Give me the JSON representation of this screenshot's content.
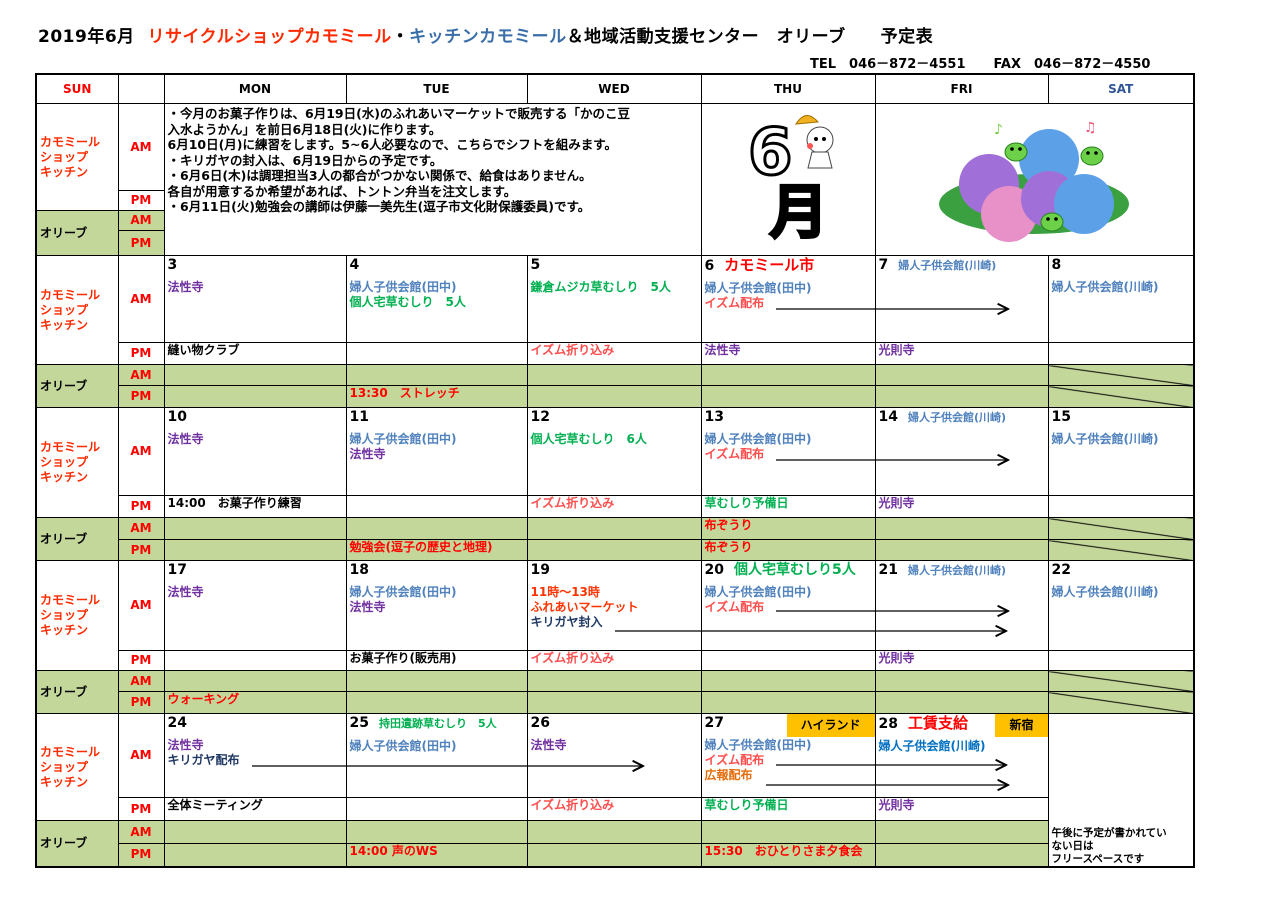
{
  "header": {
    "date": "2019年6月",
    "org1": "リサイクルショップカモミール",
    "sep": "・",
    "org2": "キッチンカモミール",
    "org3": "＆地域活動支援センター　オリーブ　　予定表",
    "tel": "TEL　046－872－4551",
    "fax": "FAX　046－872－4550"
  },
  "colors": {
    "purple": "#7030a0",
    "blue": "#4f81bd",
    "blue2": "#0070c0",
    "green": "#00b050",
    "red": "#ff0000",
    "pink": "#ff4d4d",
    "orange_red": "#ff3300",
    "navy": "#1f3864",
    "orange": "#e46c0a",
    "black": "#000000",
    "olive_green": "#c4d79b",
    "badge": "#ffc000"
  },
  "columns": [
    "SUN",
    "",
    "MON",
    "TUE",
    "WED",
    "THU",
    "FRI",
    "SAT"
  ],
  "groups": {
    "kamomile": [
      "カモミール",
      "ショップ",
      "キッチン"
    ],
    "olive": "オリーブ",
    "am": "AM",
    "pm": "PM"
  },
  "notes": [
    "・今月のお菓子作りは、6月19日(水)のふれあいマーケットで販売する「かのこ豆",
    "入水ようかん」を前日6月18日(火)に作ります。",
    "6月10日(月)に練習をします。5~6人必要なので、こちらでシフトを組みます。",
    "・キリガヤの封入は、6月19日からの予定です。",
    "・6月6日(木)は調理担当3人の都合がつかない関係で、給食はありません。",
    "各自が用意するか希望があれば、トントン弁当を注文します。",
    "・6月11日(火)勉強会の講師は伊藤一美先生(逗子市文化財保護委員)です。"
  ],
  "images": {
    "month_art": "6月",
    "hydrangea": "hydrangea-frogs-illustration"
  },
  "weeks": [
    {
      "days": [
        {
          "date": "3",
          "am": [
            {
              "text": "法性寺",
              "color": "purple"
            }
          ],
          "pm": {
            "text": "縫い物クラブ",
            "color": "black"
          }
        },
        {
          "date": "4",
          "am": [
            {
              "text": "婦人子供会館(田中)",
              "color": "blue"
            },
            {
              "text": "個人宅草むしり　5人",
              "color": "green"
            }
          ],
          "olive_pm": {
            "text": "13:30　ストレッチ",
            "color": "red"
          }
        },
        {
          "date": "5",
          "am": [
            {
              "text": "鎌倉ムジカ草むしり　5人",
              "color": "green"
            }
          ],
          "pm": {
            "text": "イズム折り込み",
            "color": "pink"
          }
        },
        {
          "date": "6",
          "header": {
            "text": "カモミール市",
            "color": "red",
            "size": "big"
          },
          "am": [
            {
              "text": "婦人子供会館(田中)",
              "color": "blue"
            },
            {
              "text": "イズム配布",
              "color": "pink"
            }
          ],
          "pm": {
            "text": "法性寺",
            "color": "purple"
          }
        },
        {
          "date": "7",
          "header": {
            "text": "婦人子供会館(川崎)",
            "color": "blue",
            "size": "small"
          },
          "pm": {
            "text": "光則寺",
            "color": "purple"
          }
        },
        {
          "date": "8",
          "am": [
            {
              "text": "婦人子供会館(川崎)",
              "color": "blue"
            }
          ]
        }
      ]
    },
    {
      "days": [
        {
          "date": "10",
          "am": [
            {
              "text": "法性寺",
              "color": "purple"
            }
          ],
          "pm": {
            "text": "14:00　お菓子作り練習",
            "color": "black"
          }
        },
        {
          "date": "11",
          "am": [
            {
              "text": "婦人子供会館(田中)",
              "color": "blue"
            },
            {
              "text": "法性寺",
              "color": "purple"
            }
          ],
          "olive_pm": {
            "text": "勉強会(逗子の歴史と地理)",
            "color": "red"
          }
        },
        {
          "date": "12",
          "am": [
            {
              "text": "個人宅草むしり　6人",
              "color": "green"
            }
          ],
          "pm": {
            "text": "イズム折り込み",
            "color": "pink"
          }
        },
        {
          "date": "13",
          "am": [
            {
              "text": "婦人子供会館(田中)",
              "color": "blue"
            },
            {
              "text": "イズム配布",
              "color": "pink"
            }
          ],
          "pm": {
            "text": "草むしり予備日",
            "color": "green"
          },
          "olive_am": {
            "text": "布ぞうり",
            "color": "red"
          },
          "olive_pm": {
            "text": "布ぞうり",
            "color": "red"
          }
        },
        {
          "date": "14",
          "header": {
            "text": "婦人子供会館(川崎)",
            "color": "blue",
            "size": "small"
          },
          "pm": {
            "text": "光則寺",
            "color": "purple"
          }
        },
        {
          "date": "15",
          "am": [
            {
              "text": "婦人子供会館(川崎)",
              "color": "blue"
            }
          ]
        }
      ]
    },
    {
      "days": [
        {
          "date": "17",
          "am": [
            {
              "text": "法性寺",
              "color": "purple"
            }
          ],
          "olive_pm": {
            "text": "ウォーキング",
            "color": "red"
          }
        },
        {
          "date": "18",
          "am": [
            {
              "text": "婦人子供会館(田中)",
              "color": "blue"
            },
            {
              "text": "法性寺",
              "color": "purple"
            }
          ],
          "pm": {
            "text": "お菓子作り(販売用)",
            "color": "black"
          }
        },
        {
          "date": "19",
          "am": [
            {
              "text": "11時～13時",
              "color": "orange_red"
            },
            {
              "text": "ふれあいマーケット",
              "color": "orange_red"
            },
            {
              "text": "キリガヤ封入",
              "color": "navy"
            }
          ],
          "pm": {
            "text": "イズム折り込み",
            "color": "pink"
          }
        },
        {
          "date": "20",
          "header": {
            "text": "個人宅草むしり5人",
            "color": "green",
            "size": "normal"
          },
          "am": [
            {
              "text": "婦人子供会館(田中)",
              "color": "blue"
            },
            {
              "text": "イズム配布",
              "color": "pink"
            }
          ]
        },
        {
          "date": "21",
          "header": {
            "text": "婦人子供会館(川崎)",
            "color": "blue",
            "size": "small"
          },
          "pm": {
            "text": "光則寺",
            "color": "purple"
          }
        },
        {
          "date": "22",
          "am": [
            {
              "text": "婦人子供会館(川崎)",
              "color": "blue"
            }
          ]
        }
      ]
    },
    {
      "days": [
        {
          "date": "24",
          "am": [
            {
              "text": "法性寺",
              "color": "purple"
            },
            {
              "text": "キリガヤ配布",
              "color": "navy"
            }
          ],
          "pm": {
            "text": "全体ミーティング",
            "color": "black"
          }
        },
        {
          "date": "25",
          "header": {
            "text": "持田遺跡草むしり　5人",
            "color": "green",
            "size": "small"
          },
          "am": [
            {
              "text": "婦人子供会館(田中)",
              "color": "blue"
            }
          ],
          "olive_pm": {
            "text": "14:00 声のWS",
            "color": "red"
          }
        },
        {
          "date": "26",
          "am": [
            {
              "text": "法性寺",
              "color": "purple"
            }
          ],
          "pm": {
            "text": "イズム折り込み",
            "color": "pink"
          }
        },
        {
          "date": "27",
          "badge": "ハイランド",
          "am": [
            {
              "text": "婦人子供会館(田中)",
              "color": "blue"
            },
            {
              "text": "イズム配布",
              "color": "pink"
            },
            {
              "text": "広報配布",
              "color": "orange"
            }
          ],
          "pm": {
            "text": "草むしり予備日",
            "color": "green"
          },
          "olive_pm": {
            "text": "15:30　おひとりさま夕食会",
            "color": "red"
          }
        },
        {
          "date": "28",
          "header": {
            "text": "工賃支給",
            "color": "red",
            "size": "big"
          },
          "badge": "新宿",
          "am": [
            {
              "text": "婦人子供会館(川崎)",
              "color": "blue2"
            }
          ],
          "pm": {
            "text": "光則寺",
            "color": "purple"
          }
        }
      ],
      "sat_note": [
        "午後に予定が書かれてい",
        "ない日は",
        "フリースペースです"
      ]
    }
  ]
}
